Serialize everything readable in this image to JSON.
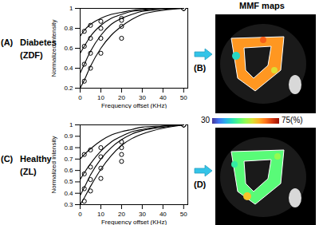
{
  "chart_data": [
    {
      "type": "line",
      "panel": "(A)",
      "title": "Diabetes",
      "subtitle": "(ZDF)",
      "xlabel": "Frequency offset (KHz)",
      "ylabel": "Normalized intensity",
      "xlim": [
        0,
        52
      ],
      "xticks": [
        0,
        10,
        20,
        30,
        40,
        50
      ],
      "ylim": [
        0.2,
        1
      ],
      "yticks": [
        0.2,
        0.4,
        0.6,
        0.8,
        1
      ],
      "series": [
        {
          "type": "scatter",
          "marker": "circle",
          "color": "#000000",
          "x": [
            2,
            5,
            10,
            20,
            50
          ],
          "values": [
            0.77,
            0.83,
            0.87,
            0.9,
            1
          ]
        },
        {
          "type": "scatter",
          "marker": "circle",
          "color": "#000000",
          "x": [
            2,
            5,
            10,
            20,
            50
          ],
          "values": [
            0.62,
            0.7,
            0.8,
            0.88,
            1
          ]
        },
        {
          "type": "scatter",
          "marker": "circle",
          "color": "#000000",
          "x": [
            2,
            5,
            10,
            20,
            50
          ],
          "values": [
            0.44,
            0.55,
            0.7,
            0.82,
            1
          ]
        },
        {
          "type": "scatter",
          "marker": "circle",
          "color": "#000000",
          "x": [
            2,
            5,
            10,
            20,
            50
          ],
          "values": [
            0.27,
            0.4,
            0.55,
            0.7,
            1
          ]
        },
        {
          "type": "line",
          "line_style": "solid",
          "color": "#000000",
          "x": [
            0,
            2,
            5,
            10,
            15,
            20,
            25,
            30,
            40,
            50
          ],
          "values": [
            0.72,
            0.78,
            0.84,
            0.9,
            0.94,
            0.96,
            0.98,
            0.99,
            1,
            1
          ]
        },
        {
          "type": "line",
          "line_style": "solid",
          "color": "#000000",
          "x": [
            0,
            2,
            5,
            10,
            15,
            20,
            25,
            30,
            40,
            50
          ],
          "values": [
            0.55,
            0.62,
            0.72,
            0.83,
            0.9,
            0.94,
            0.97,
            0.98,
            1,
            1
          ]
        },
        {
          "type": "line",
          "line_style": "solid",
          "color": "#000000",
          "x": [
            0,
            2,
            5,
            10,
            15,
            20,
            25,
            30,
            40,
            50
          ],
          "values": [
            0.35,
            0.44,
            0.57,
            0.73,
            0.84,
            0.9,
            0.94,
            0.97,
            0.99,
            1
          ]
        },
        {
          "type": "line",
          "line_style": "solid",
          "color": "#000000",
          "x": [
            0,
            2,
            5,
            10,
            15,
            20,
            25,
            30,
            40,
            50
          ],
          "values": [
            0.2,
            0.28,
            0.42,
            0.6,
            0.73,
            0.82,
            0.89,
            0.94,
            0.98,
            1
          ]
        }
      ]
    },
    {
      "type": "line",
      "panel": "(C)",
      "title": "Healthy",
      "subtitle": "(ZL)",
      "xlabel": "Frequency offset (KHz)",
      "ylabel": "Normalized intensity",
      "xlim": [
        0,
        52
      ],
      "xticks": [
        0,
        10,
        20,
        30,
        40,
        50
      ],
      "ylim": [
        0.3,
        1
      ],
      "yticks": [
        0.3,
        0.4,
        0.5,
        0.6,
        0.7,
        0.8,
        0.9,
        1
      ],
      "series": [
        {
          "type": "scatter",
          "marker": "circle",
          "color": "#000000",
          "x": [
            2,
            5,
            10,
            20,
            50
          ],
          "values": [
            0.74,
            0.78,
            0.8,
            0.85,
            1
          ]
        },
        {
          "type": "scatter",
          "marker": "circle",
          "color": "#000000",
          "x": [
            2,
            5,
            10,
            20,
            50
          ],
          "values": [
            0.57,
            0.63,
            0.72,
            0.8,
            1
          ]
        },
        {
          "type": "scatter",
          "marker": "circle",
          "color": "#000000",
          "x": [
            2,
            5,
            10,
            20,
            50
          ],
          "values": [
            0.44,
            0.52,
            0.62,
            0.74,
            1
          ]
        },
        {
          "type": "scatter",
          "marker": "circle",
          "color": "#000000",
          "x": [
            2,
            5,
            10,
            20,
            50
          ],
          "values": [
            0.33,
            0.42,
            0.53,
            0.68,
            1
          ]
        },
        {
          "type": "line",
          "line_style": "solid",
          "color": "#000000",
          "x": [
            0,
            2,
            5,
            10,
            15,
            20,
            25,
            30,
            40,
            50
          ],
          "values": [
            0.7,
            0.74,
            0.79,
            0.86,
            0.91,
            0.94,
            0.96,
            0.98,
            0.99,
            1
          ]
        },
        {
          "type": "line",
          "line_style": "solid",
          "color": "#000000",
          "x": [
            0,
            2,
            5,
            10,
            15,
            20,
            25,
            30,
            40,
            50
          ],
          "values": [
            0.52,
            0.58,
            0.66,
            0.77,
            0.85,
            0.9,
            0.94,
            0.96,
            0.99,
            1
          ]
        },
        {
          "type": "line",
          "line_style": "solid",
          "color": "#000000",
          "x": [
            0,
            2,
            5,
            10,
            15,
            20,
            25,
            30,
            40,
            50
          ],
          "values": [
            0.38,
            0.45,
            0.56,
            0.7,
            0.8,
            0.87,
            0.92,
            0.95,
            0.98,
            1
          ]
        },
        {
          "type": "line",
          "line_style": "solid",
          "color": "#000000",
          "x": [
            0,
            2,
            5,
            10,
            15,
            20,
            25,
            30,
            40,
            50
          ],
          "values": [
            0.3,
            0.36,
            0.46,
            0.61,
            0.73,
            0.82,
            0.88,
            0.92,
            0.97,
            1
          ]
        }
      ]
    }
  ],
  "maps": {
    "title": "MMF maps",
    "panels": [
      "(B)",
      "(D)"
    ],
    "colorbar": {
      "range": [
        30,
        75
      ],
      "ticks": [
        30,
        {
          "value": 75,
          "label": "75(%)"
        }
      ]
    }
  }
}
